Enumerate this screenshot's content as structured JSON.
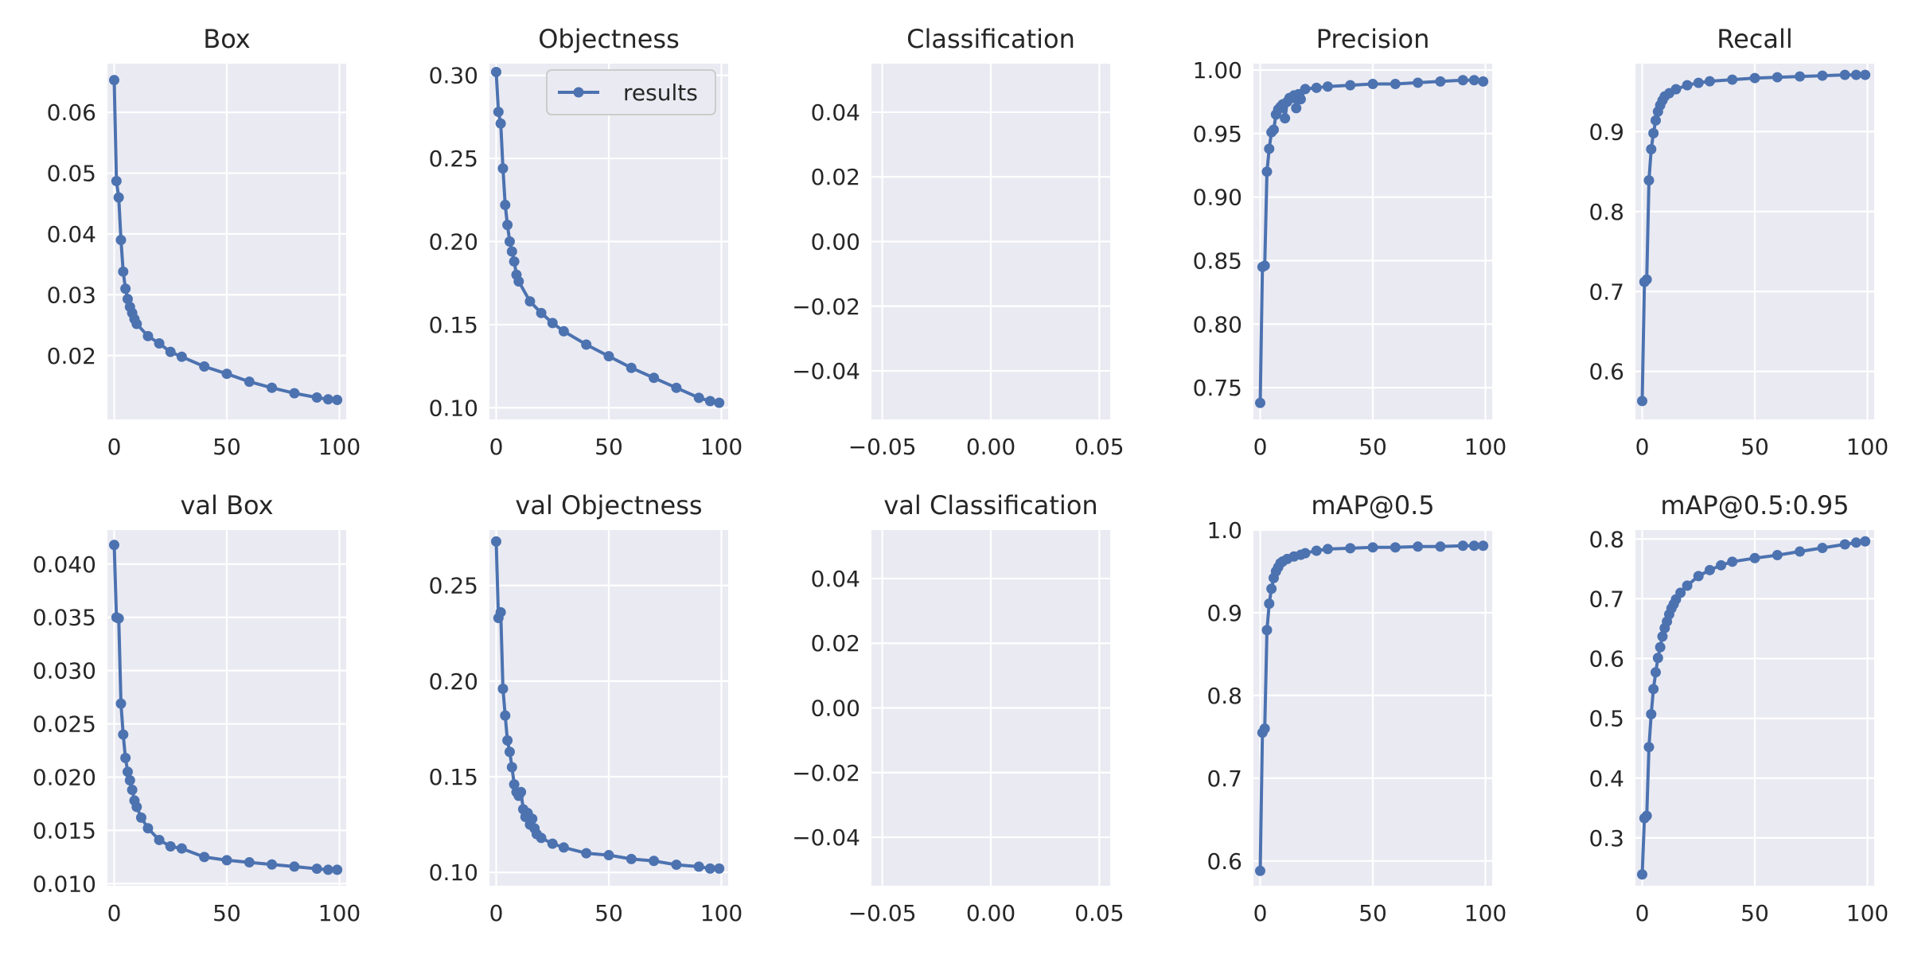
{
  "chart_data": [
    {
      "type": "line",
      "title": "Box",
      "xlim": [
        -3,
        103
      ],
      "ylim": [
        0.0095,
        0.068
      ],
      "xticks": [
        0,
        50,
        100
      ],
      "xtick_labels": [
        "0",
        "50",
        "100"
      ],
      "yticks": [
        0.02,
        0.03,
        0.04,
        0.05,
        0.06
      ],
      "ytick_labels": [
        "0.02",
        "0.03",
        "0.04",
        "0.05",
        "0.06"
      ],
      "grid": true,
      "legend": null,
      "series": [
        {
          "name": "results",
          "x": [
            0,
            1,
            2,
            3,
            4,
            5,
            6,
            7,
            8,
            9,
            10,
            15,
            20,
            25,
            30,
            40,
            50,
            60,
            70,
            80,
            90,
            95,
            99
          ],
          "y": [
            0.0653,
            0.0487,
            0.046,
            0.039,
            0.0338,
            0.031,
            0.0293,
            0.028,
            0.027,
            0.026,
            0.0252,
            0.0232,
            0.022,
            0.0206,
            0.0198,
            0.0182,
            0.017,
            0.0157,
            0.0147,
            0.0138,
            0.0131,
            0.0128,
            0.0127
          ]
        }
      ]
    },
    {
      "type": "line",
      "title": "Objectness",
      "xlim": [
        -3,
        103
      ],
      "ylim": [
        0.093,
        0.307
      ],
      "xticks": [
        0,
        50,
        100
      ],
      "xtick_labels": [
        "0",
        "50",
        "100"
      ],
      "yticks": [
        0.1,
        0.15,
        0.2,
        0.25,
        0.3
      ],
      "ytick_labels": [
        "0.10",
        "0.15",
        "0.20",
        "0.25",
        "0.30"
      ],
      "grid": true,
      "legend": "upper right",
      "series": [
        {
          "name": "results",
          "x": [
            0,
            1,
            2,
            3,
            4,
            5,
            6,
            7,
            8,
            9,
            10,
            15,
            20,
            25,
            30,
            40,
            50,
            60,
            70,
            80,
            90,
            95,
            99
          ],
          "y": [
            0.302,
            0.278,
            0.271,
            0.244,
            0.222,
            0.21,
            0.2,
            0.194,
            0.188,
            0.18,
            0.176,
            0.164,
            0.157,
            0.151,
            0.146,
            0.138,
            0.131,
            0.124,
            0.118,
            0.112,
            0.106,
            0.104,
            0.103
          ]
        }
      ]
    },
    {
      "type": "line",
      "title": "Classification",
      "xlim": [
        -0.055,
        0.055
      ],
      "ylim": [
        -0.055,
        0.055
      ],
      "xticks": [
        -0.05,
        0,
        0.05
      ],
      "xtick_labels": [
        "−0.05",
        "0.00",
        "0.05"
      ],
      "yticks": [
        -0.04,
        -0.02,
        0,
        0.02,
        0.04
      ],
      "ytick_labels": [
        "−0.04",
        "−0.02",
        "0.00",
        "0.02",
        "0.04"
      ],
      "grid": true,
      "legend": null,
      "series": []
    },
    {
      "type": "line",
      "title": "Precision",
      "xlim": [
        -3,
        103
      ],
      "ylim": [
        0.725,
        1.005
      ],
      "xticks": [
        0,
        50,
        100
      ],
      "xtick_labels": [
        "0",
        "50",
        "100"
      ],
      "yticks": [
        0.75,
        0.8,
        0.85,
        0.9,
        0.95,
        1.0
      ],
      "ytick_labels": [
        "0.75",
        "0.80",
        "0.85",
        "0.90",
        "0.95",
        "1.00"
      ],
      "grid": true,
      "legend": null,
      "series": [
        {
          "name": "results",
          "x": [
            0,
            1,
            2,
            3,
            4,
            5,
            6,
            7,
            8,
            9,
            10,
            11,
            12,
            13,
            14,
            15,
            16,
            17,
            18,
            20,
            25,
            30,
            40,
            50,
            60,
            70,
            80,
            90,
            95,
            99
          ],
          "y": [
            0.738,
            0.845,
            0.846,
            0.92,
            0.938,
            0.951,
            0.953,
            0.965,
            0.969,
            0.971,
            0.973,
            0.962,
            0.975,
            0.978,
            0.978,
            0.98,
            0.97,
            0.981,
            0.977,
            0.985,
            0.986,
            0.987,
            0.988,
            0.989,
            0.989,
            0.99,
            0.991,
            0.992,
            0.992,
            0.991
          ]
        }
      ]
    },
    {
      "type": "line",
      "title": "Recall",
      "xlim": [
        -3,
        103
      ],
      "ylim": [
        0.54,
        0.985
      ],
      "xticks": [
        0,
        50,
        100
      ],
      "xtick_labels": [
        "0",
        "50",
        "100"
      ],
      "yticks": [
        0.6,
        0.7,
        0.8,
        0.9
      ],
      "ytick_labels": [
        "0.6",
        "0.7",
        "0.8",
        "0.9"
      ],
      "grid": true,
      "legend": null,
      "series": [
        {
          "name": "results",
          "x": [
            0,
            1,
            2,
            3,
            4,
            5,
            6,
            7,
            8,
            9,
            10,
            12,
            15,
            20,
            25,
            30,
            40,
            50,
            60,
            70,
            80,
            90,
            95,
            99
          ],
          "y": [
            0.563,
            0.712,
            0.715,
            0.839,
            0.878,
            0.898,
            0.914,
            0.925,
            0.933,
            0.939,
            0.944,
            0.948,
            0.953,
            0.958,
            0.961,
            0.963,
            0.965,
            0.967,
            0.968,
            0.969,
            0.97,
            0.971,
            0.971,
            0.971
          ]
        }
      ]
    },
    {
      "type": "line",
      "title": "val Box",
      "xlim": [
        -3,
        103
      ],
      "ylim": [
        0.0098,
        0.0432
      ],
      "xticks": [
        0,
        50,
        100
      ],
      "xtick_labels": [
        "0",
        "50",
        "100"
      ],
      "yticks": [
        0.01,
        0.015,
        0.02,
        0.025,
        0.03,
        0.035,
        0.04
      ],
      "ytick_labels": [
        "0.010",
        "0.015",
        "0.020",
        "0.025",
        "0.030",
        "0.035",
        "0.040"
      ],
      "grid": true,
      "legend": null,
      "series": [
        {
          "name": "results",
          "x": [
            0,
            1,
            2,
            3,
            4,
            5,
            6,
            7,
            8,
            9,
            10,
            12,
            15,
            20,
            25,
            30,
            40,
            50,
            60,
            70,
            80,
            90,
            95,
            99
          ],
          "y": [
            0.0418,
            0.035,
            0.0349,
            0.0269,
            0.024,
            0.0218,
            0.0205,
            0.0197,
            0.0188,
            0.0178,
            0.0172,
            0.0162,
            0.0152,
            0.0141,
            0.0135,
            0.0133,
            0.0125,
            0.0122,
            0.012,
            0.0118,
            0.0116,
            0.0114,
            0.0113,
            0.0113
          ]
        }
      ]
    },
    {
      "type": "line",
      "title": "val Objectness",
      "xlim": [
        -3,
        103
      ],
      "ylim": [
        0.093,
        0.279
      ],
      "xticks": [
        0,
        50,
        100
      ],
      "xtick_labels": [
        "0",
        "50",
        "100"
      ],
      "yticks": [
        0.1,
        0.15,
        0.2,
        0.25
      ],
      "ytick_labels": [
        "0.10",
        "0.15",
        "0.20",
        "0.25"
      ],
      "grid": true,
      "legend": null,
      "series": [
        {
          "name": "results",
          "x": [
            0,
            1,
            2,
            3,
            4,
            5,
            6,
            7,
            8,
            9,
            10,
            11,
            12,
            13,
            14,
            15,
            16,
            17,
            18,
            20,
            25,
            30,
            40,
            50,
            60,
            70,
            80,
            90,
            95,
            99
          ],
          "y": [
            0.273,
            0.233,
            0.236,
            0.196,
            0.182,
            0.169,
            0.163,
            0.155,
            0.146,
            0.142,
            0.14,
            0.142,
            0.133,
            0.129,
            0.131,
            0.125,
            0.128,
            0.123,
            0.12,
            0.118,
            0.115,
            0.113,
            0.11,
            0.109,
            0.107,
            0.106,
            0.104,
            0.103,
            0.102,
            0.102
          ]
        }
      ]
    },
    {
      "type": "line",
      "title": "val Classification",
      "xlim": [
        -0.055,
        0.055
      ],
      "ylim": [
        -0.055,
        0.055
      ],
      "xticks": [
        -0.05,
        0,
        0.05
      ],
      "xtick_labels": [
        "−0.05",
        "0.00",
        "0.05"
      ],
      "yticks": [
        -0.04,
        -0.02,
        0,
        0.02,
        0.04
      ],
      "ytick_labels": [
        "−0.04",
        "−0.02",
        "0.00",
        "0.02",
        "0.04"
      ],
      "grid": true,
      "legend": null,
      "series": []
    },
    {
      "type": "line",
      "title": "mAP@0.5",
      "xlim": [
        -3,
        103
      ],
      "ylim": [
        0.57,
        1.0
      ],
      "xticks": [
        0,
        50,
        100
      ],
      "xtick_labels": [
        "0",
        "50",
        "100"
      ],
      "yticks": [
        0.6,
        0.7,
        0.8,
        0.9,
        1.0
      ],
      "ytick_labels": [
        "0.6",
        "0.7",
        "0.8",
        "0.9",
        "1.0"
      ],
      "grid": true,
      "legend": null,
      "series": [
        {
          "name": "results",
          "x": [
            0,
            1,
            2,
            3,
            4,
            5,
            6,
            7,
            8,
            9,
            10,
            12,
            15,
            18,
            20,
            25,
            30,
            40,
            50,
            60,
            70,
            80,
            90,
            95,
            99
          ],
          "y": [
            0.588,
            0.755,
            0.76,
            0.879,
            0.911,
            0.929,
            0.942,
            0.95,
            0.955,
            0.96,
            0.962,
            0.965,
            0.968,
            0.97,
            0.972,
            0.975,
            0.977,
            0.978,
            0.979,
            0.979,
            0.98,
            0.98,
            0.981,
            0.981,
            0.981
          ]
        }
      ]
    },
    {
      "type": "line",
      "title": "mAP@0.5:0.95",
      "xlim": [
        -3,
        103
      ],
      "ylim": [
        0.22,
        0.815
      ],
      "xticks": [
        0,
        50,
        100
      ],
      "xtick_labels": [
        "0",
        "50",
        "100"
      ],
      "yticks": [
        0.3,
        0.4,
        0.5,
        0.6,
        0.7,
        0.8
      ],
      "ytick_labels": [
        "0.3",
        "0.4",
        "0.5",
        "0.6",
        "0.7",
        "0.8"
      ],
      "grid": true,
      "legend": null,
      "series": [
        {
          "name": "results",
          "x": [
            0,
            1,
            2,
            3,
            4,
            5,
            6,
            7,
            8,
            9,
            10,
            11,
            12,
            13,
            14,
            15,
            17,
            20,
            25,
            30,
            35,
            40,
            50,
            60,
            70,
            80,
            90,
            95,
            99
          ],
          "y": [
            0.239,
            0.333,
            0.337,
            0.452,
            0.507,
            0.549,
            0.577,
            0.601,
            0.619,
            0.637,
            0.651,
            0.662,
            0.674,
            0.684,
            0.691,
            0.699,
            0.71,
            0.722,
            0.738,
            0.748,
            0.756,
            0.762,
            0.768,
            0.773,
            0.779,
            0.785,
            0.791,
            0.794,
            0.796
          ]
        }
      ]
    }
  ],
  "style": {
    "line_color": "#4c72b0",
    "plot_bg": "#eaeaf2",
    "grid_color": "#ffffff",
    "text_color": "#262626"
  }
}
